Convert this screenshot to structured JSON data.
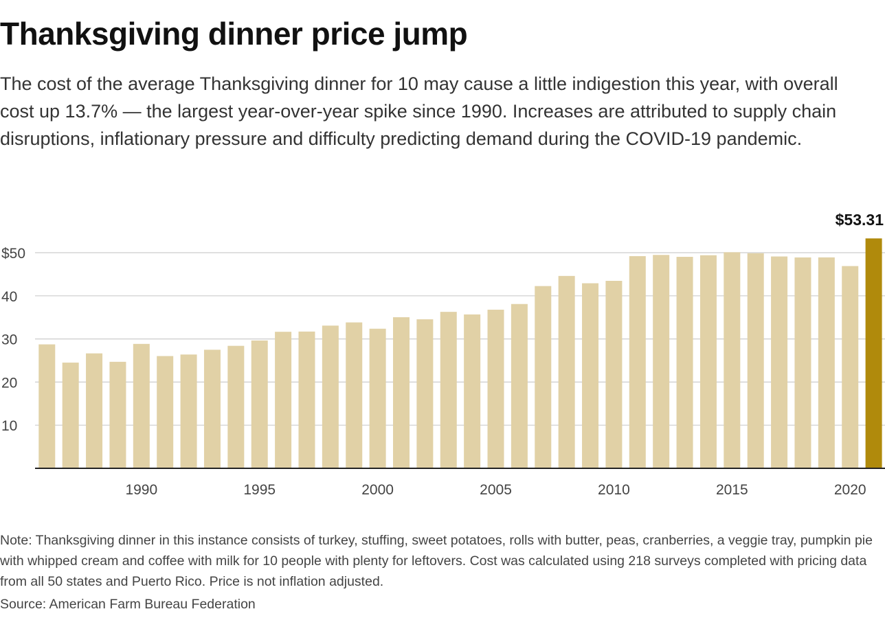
{
  "header": {
    "title": "Thanksgiving dinner price jump",
    "subtitle": "The cost of the average Thanksgiving dinner for 10 may cause a little indigestion this year, with overall cost up 13.7% — the largest year-over-year spike since 1990. Increases are attributed to supply chain disruptions, inflationary pressure and difficulty predicting demand during the COVID-19 pandemic."
  },
  "footer": {
    "note": "Note: Thanksgiving dinner in this instance consists of turkey, stuffing, sweet potatoes, rolls with butter, peas, cranberries, a veggie tray, pumpkin pie with whipped cream and coffee with milk for 10 people with plenty for leftovers. Cost was calculated using 218 surveys completed with pricing data from all 50 states and Puerto Rico. Price is not inflation adjusted.",
    "source": "Source: American Farm Bureau Federation"
  },
  "colors": {
    "bar": "#e1d1a6",
    "highlight": "#b08a0c",
    "grid": "#cccccc",
    "axis": "#222222",
    "tick_text": "#444444"
  },
  "chart_data": {
    "type": "bar",
    "title": "Thanksgiving dinner price jump",
    "xlabel": "",
    "ylabel": "",
    "ylim": [
      0,
      55
    ],
    "grid": true,
    "y_ticks": [
      10,
      20,
      30,
      40,
      50
    ],
    "y_tick_labels": [
      "10",
      "20",
      "30",
      "40",
      "$50"
    ],
    "x_ticks": [
      1990,
      1995,
      2000,
      2005,
      2010,
      2015,
      2020
    ],
    "x_tick_labels": [
      "1990",
      "1995",
      "2000",
      "2005",
      "2010",
      "2015",
      "2020"
    ],
    "categories": [
      1986,
      1987,
      1988,
      1989,
      1990,
      1991,
      1992,
      1993,
      1994,
      1995,
      1996,
      1997,
      1998,
      1999,
      2000,
      2001,
      2002,
      2003,
      2004,
      2005,
      2006,
      2007,
      2008,
      2009,
      2010,
      2011,
      2012,
      2013,
      2014,
      2015,
      2016,
      2017,
      2018,
      2019,
      2020,
      2021
    ],
    "values": [
      28.74,
      24.51,
      26.65,
      24.7,
      28.85,
      26.03,
      26.39,
      27.49,
      28.4,
      29.64,
      31.66,
      31.71,
      33.09,
      33.83,
      32.37,
      35.04,
      34.56,
      36.28,
      35.68,
      36.78,
      38.1,
      42.26,
      44.61,
      42.91,
      43.47,
      49.2,
      49.48,
      49.04,
      49.41,
      50.11,
      49.87,
      49.12,
      48.9,
      48.91,
      46.9,
      53.31
    ],
    "highlight_index": 35,
    "annotations": [
      {
        "category": 2021,
        "label": "$53.31"
      }
    ]
  }
}
